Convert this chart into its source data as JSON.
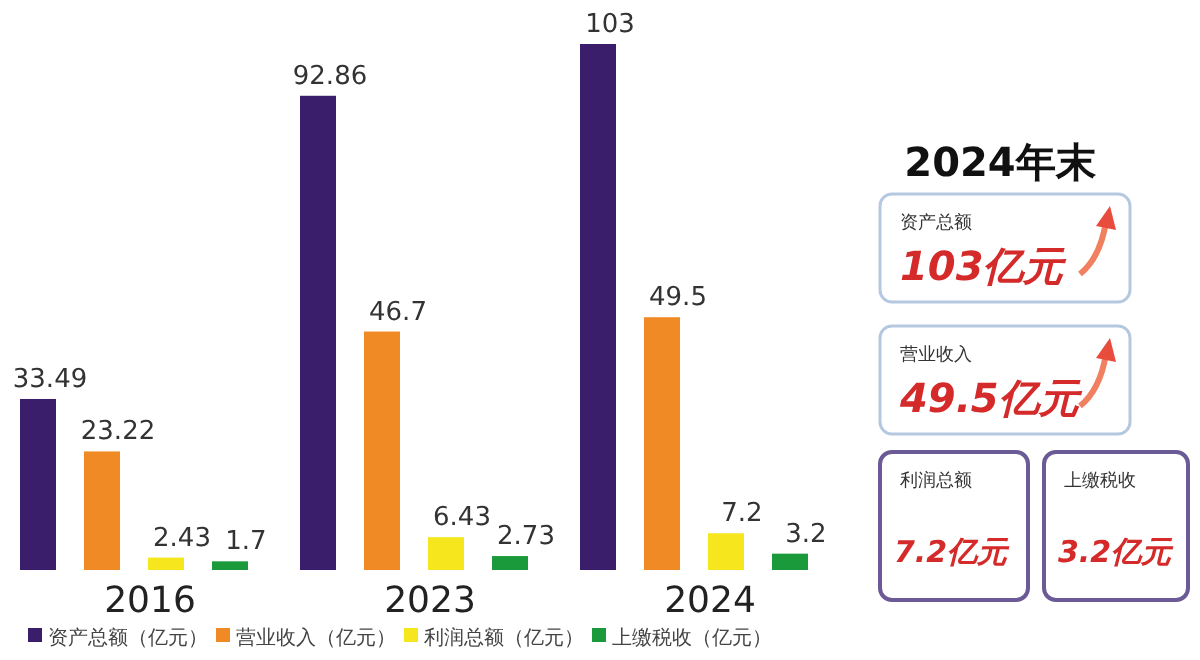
{
  "chart_data": [
    {
      "type": "bar",
      "categories": [
        "2016",
        "2023",
        "2024"
      ],
      "data_labels": true,
      "legend": "bottom",
      "series": [
        {
          "name": "资产总额（亿元）",
          "color": "#3b1e6b",
          "values": [
            33.49,
            92.86,
            103
          ]
        },
        {
          "name": "营业收入（亿元）",
          "color": "#f08a24",
          "values": [
            23.22,
            46.7,
            49.5
          ]
        },
        {
          "name": "利润总额（亿元）",
          "color": "#f6e61e",
          "values": [
            2.43,
            6.43,
            7.2
          ]
        },
        {
          "name": "上缴税收（亿元）",
          "color": "#1a9a3a",
          "values": [
            1.7,
            2.73,
            3.2
          ]
        }
      ]
    },
    {
      "type": "other",
      "title": "2024年末",
      "annotations": [
        "资产总额",
        "103亿元",
        "营业收入",
        "49.5亿元",
        "利润总额",
        "7.2亿元",
        "上缴税收",
        "3.2亿元"
      ]
    }
  ]
}
